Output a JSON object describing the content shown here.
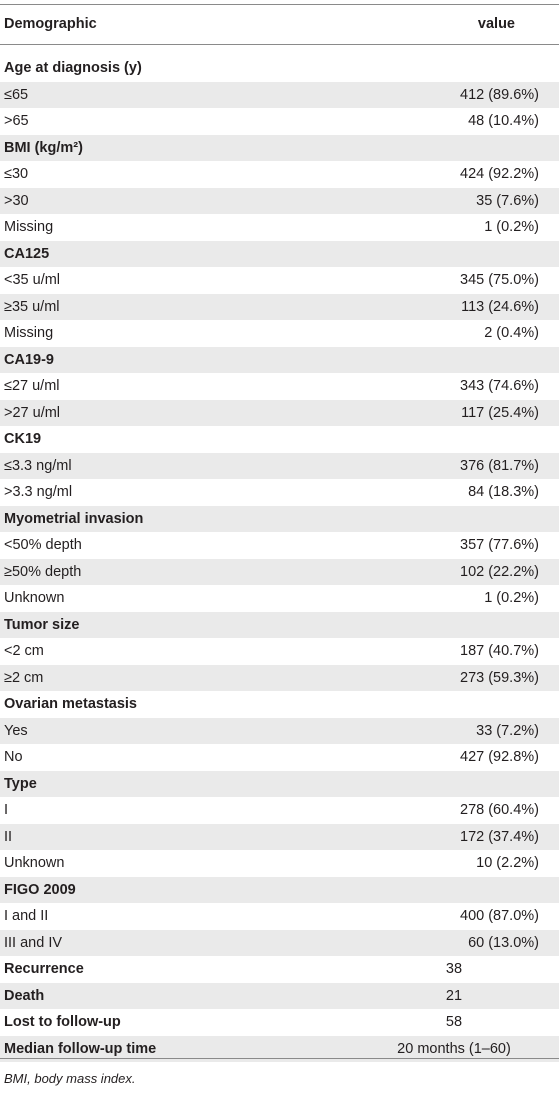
{
  "table": {
    "header": {
      "label": "Demographic",
      "value": "value"
    },
    "rows": [
      {
        "kind": "group",
        "label": "Age at diagnosis (y)",
        "value": ""
      },
      {
        "kind": "item",
        "label": "≤65",
        "value": "412 (89.6%)"
      },
      {
        "kind": "item",
        "label": ">65",
        "value": "48 (10.4%)"
      },
      {
        "kind": "group",
        "label": "BMI (kg/m²)",
        "value": ""
      },
      {
        "kind": "item",
        "label": "≤30",
        "value": "424 (92.2%)"
      },
      {
        "kind": "item",
        "label": ">30",
        "value": "35 (7.6%)"
      },
      {
        "kind": "item",
        "label": "Missing",
        "value": "1 (0.2%)"
      },
      {
        "kind": "group",
        "label": "CA125",
        "value": ""
      },
      {
        "kind": "item",
        "label": "<35 u/ml",
        "value": "345 (75.0%)"
      },
      {
        "kind": "item",
        "label": "≥35 u/ml",
        "value": "113 (24.6%)"
      },
      {
        "kind": "item",
        "label": "Missing",
        "value": "2 (0.4%)"
      },
      {
        "kind": "group",
        "label": "CA19-9",
        "value": ""
      },
      {
        "kind": "item",
        "label": "≤27 u/ml",
        "value": "343 (74.6%)"
      },
      {
        "kind": "item",
        "label": ">27 u/ml",
        "value": "117 (25.4%)"
      },
      {
        "kind": "group",
        "label": "CK19",
        "value": ""
      },
      {
        "kind": "item",
        "label": "≤3.3 ng/ml",
        "value": "376 (81.7%)"
      },
      {
        "kind": "item",
        "label": ">3.3 ng/ml",
        "value": "84 (18.3%)"
      },
      {
        "kind": "group",
        "label": "Myometrial invasion",
        "value": ""
      },
      {
        "kind": "item",
        "label": "<50% depth",
        "value": "357 (77.6%)"
      },
      {
        "kind": "item",
        "label": "≥50% depth",
        "value": "102 (22.2%)"
      },
      {
        "kind": "item",
        "label": "Unknown",
        "value": "1 (0.2%)"
      },
      {
        "kind": "group",
        "label": "Tumor size",
        "value": ""
      },
      {
        "kind": "item",
        "label": "<2 cm",
        "value": "187 (40.7%)"
      },
      {
        "kind": "item",
        "label": "≥2 cm",
        "value": "273 (59.3%)"
      },
      {
        "kind": "group",
        "label": "Ovarian metastasis",
        "value": ""
      },
      {
        "kind": "item",
        "label": "Yes",
        "value": "33 (7.2%)"
      },
      {
        "kind": "item",
        "label": "No",
        "value": "427 (92.8%)"
      },
      {
        "kind": "group",
        "label": "Type",
        "value": ""
      },
      {
        "kind": "item",
        "label": "I",
        "value": "278 (60.4%)"
      },
      {
        "kind": "item",
        "label": "II",
        "value": "172 (37.4%)"
      },
      {
        "kind": "item",
        "label": "Unknown",
        "value": "10 (2.2%)"
      },
      {
        "kind": "group",
        "label": "FIGO 2009",
        "value": ""
      },
      {
        "kind": "item",
        "label": "I and II",
        "value": "400 (87.0%)"
      },
      {
        "kind": "item",
        "label": "III and IV",
        "value": "60 (13.0%)"
      },
      {
        "kind": "summary",
        "label": "Recurrence",
        "value": "38"
      },
      {
        "kind": "summary",
        "label": "Death",
        "value": "21"
      },
      {
        "kind": "summary",
        "label": "Lost to follow-up",
        "value": "58"
      },
      {
        "kind": "summary",
        "label": "Median follow-up time",
        "value": "20 months (1–60)"
      }
    ],
    "footnote": "BMI, body mass index."
  },
  "colors": {
    "shade": "#eaeaea",
    "rule": "#8a8a8a",
    "text": "#231f20"
  }
}
